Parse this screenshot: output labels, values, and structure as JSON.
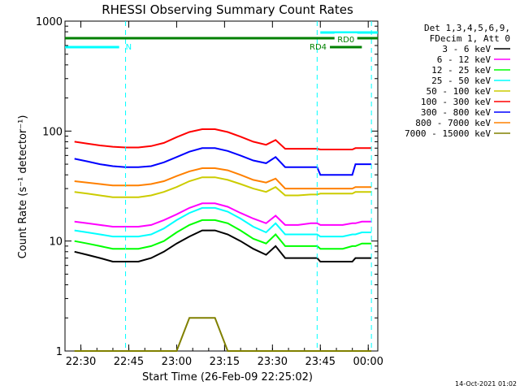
{
  "chart_data": {
    "type": "line",
    "title": "RHESSI Observing Summary Count Rates",
    "xlabel": "Start Time (26-Feb-09 22:25:02)",
    "ylabel": "Count Rate (s⁻¹ detector⁻¹)",
    "ylim": [
      1,
      1000
    ],
    "yscale": "log",
    "xlim": [
      "22:25:02",
      "00:03:00"
    ],
    "x_ticks": [
      "22:30",
      "22:45",
      "23:00",
      "23:15",
      "23:30",
      "23:45",
      "00:00"
    ],
    "y_ticks": [
      "1",
      "10",
      "100",
      "1000"
    ],
    "grid": false,
    "legend_position": "right",
    "legend_header": [
      "Det 1,3,4,5,6,9,",
      "FDecim 1, Att 0"
    ],
    "timestamp": "14-Oct-2021 01:02",
    "x": [
      "22:28",
      "22:32",
      "22:36",
      "22:40",
      "22:44",
      "22:48",
      "22:52",
      "22:56",
      "23:00",
      "23:04",
      "23:08",
      "23:12",
      "23:16",
      "23:20",
      "23:24",
      "23:28",
      "23:31",
      "23:34",
      "23:38",
      "23:42",
      "23:44",
      "23:45",
      "23:48",
      "23:52",
      "23:55",
      "23:56",
      "23:58",
      "00:01"
    ],
    "series": [
      {
        "name": "3 - 6 keV",
        "color": "#000000",
        "values": [
          8,
          7.5,
          7,
          6.5,
          6.5,
          6.5,
          7,
          8,
          9.5,
          11,
          12.5,
          12.5,
          11.5,
          10,
          8.5,
          7.5,
          9,
          7,
          7,
          7,
          7,
          6.5,
          6.5,
          6.5,
          6.5,
          7,
          7,
          7
        ]
      },
      {
        "name": "6 - 12 keV",
        "color": "#ff00ff",
        "values": [
          15,
          14.5,
          14,
          13.5,
          13.5,
          13.5,
          14,
          15.5,
          17.5,
          20,
          22,
          22,
          20.5,
          18,
          16,
          14.5,
          17,
          14,
          14,
          14.5,
          14.5,
          14,
          14,
          14,
          14.5,
          14.5,
          15,
          15
        ]
      },
      {
        "name": "12 - 25 keV",
        "color": "#00ff00",
        "values": [
          10,
          9.5,
          9,
          8.5,
          8.5,
          8.5,
          9,
          10,
          12,
          14,
          15.5,
          15.5,
          14.5,
          12.5,
          10.5,
          9.5,
          11.5,
          9,
          9,
          9,
          9,
          8.5,
          8.5,
          8.5,
          9,
          9,
          9.5,
          9.5
        ]
      },
      {
        "name": "25 - 50 keV",
        "color": "#00ffff",
        "values": [
          12.5,
          12,
          11.5,
          11,
          11,
          11,
          11.5,
          13,
          15.5,
          18,
          20,
          20,
          18.5,
          16,
          13.5,
          12,
          14.5,
          11.5,
          11.5,
          11.5,
          11.5,
          11,
          11,
          11,
          11.5,
          11.5,
          12,
          12
        ]
      },
      {
        "name": "50 - 100 keV",
        "color": "#cccc00",
        "values": [
          28,
          27,
          26,
          25,
          25,
          25,
          26,
          28,
          31,
          35,
          38,
          38,
          36,
          33,
          30,
          28,
          31,
          26,
          26,
          26.5,
          26.5,
          27,
          27,
          27,
          27,
          28,
          28,
          28
        ]
      },
      {
        "name": "100 - 300 keV",
        "color": "#ff0000",
        "values": [
          80,
          77,
          74,
          72,
          71,
          71,
          73,
          78,
          88,
          98,
          104,
          104,
          98,
          89,
          80,
          75,
          83,
          69,
          69,
          69,
          69,
          68,
          68,
          68,
          68,
          70,
          70,
          70
        ]
      },
      {
        "name": "300 - 800 keV",
        "color": "#0000ff",
        "values": [
          56,
          53,
          50,
          48,
          47,
          47,
          48,
          52,
          58,
          65,
          70,
          70,
          66,
          60,
          54,
          51,
          58,
          47,
          47,
          47,
          47,
          40,
          40,
          40,
          40,
          50,
          50,
          50
        ]
      },
      {
        "name": "800 - 7000 keV",
        "color": "#ff8000",
        "values": [
          35,
          34,
          33,
          32,
          32,
          32,
          33,
          35,
          39,
          43,
          46,
          46,
          44,
          40,
          36,
          34,
          37,
          30,
          30,
          30,
          30,
          30,
          30,
          30,
          30,
          31,
          31,
          31
        ]
      },
      {
        "name": "7000 - 15000 keV",
        "color": "#808000",
        "values": [
          1,
          1,
          1,
          1,
          1,
          1,
          1,
          1,
          1,
          2,
          2,
          2,
          1,
          1,
          1,
          1,
          1,
          1,
          1,
          1,
          1,
          1,
          1,
          1,
          1,
          1,
          1,
          1
        ]
      }
    ],
    "annotations": [
      {
        "label": "N",
        "color": "#00ffff",
        "start": "22:25:02",
        "end": "22:42"
      },
      {
        "label": "",
        "color": "#00ffff",
        "start": "23:45",
        "end": "00:03:00"
      },
      {
        "label": "RD0",
        "color": "#008000",
        "start": "22:25:02",
        "end": "00:03:00"
      },
      {
        "label": "RD4",
        "color": "#008000",
        "start": "23:48",
        "end": "23:58"
      }
    ],
    "markers": [
      "22:44",
      "23:44",
      "00:01"
    ]
  }
}
